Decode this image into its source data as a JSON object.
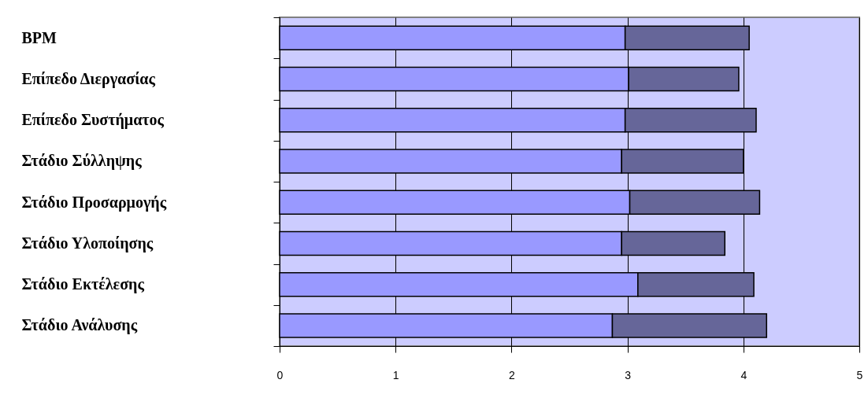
{
  "chart_data": {
    "type": "bar",
    "orientation": "horizontal",
    "stacked": true,
    "categories": [
      "BPM",
      "Επίπεδο Διεργασίας",
      "Επίπεδο Συστήματος",
      "Στάδιο Σύλληψης",
      "Στάδιο Προσαρμογής",
      "Στάδιο Υλοποίησης",
      "Στάδιο Εκτέλεσης",
      "Στάδιο Ανάλυσης"
    ],
    "series": [
      {
        "color": "#9999ff",
        "values": [
          2.98,
          3.01,
          2.98,
          2.95,
          3.02,
          2.95,
          3.09,
          2.87
        ]
      },
      {
        "color": "#666699",
        "values": [
          1.07,
          0.95,
          1.13,
          1.05,
          1.12,
          0.89,
          1.0,
          1.33
        ]
      }
    ],
    "xlim": [
      0,
      5
    ],
    "xticks": [
      0,
      1,
      2,
      3,
      4,
      5
    ],
    "grid": "x",
    "legend": false
  }
}
